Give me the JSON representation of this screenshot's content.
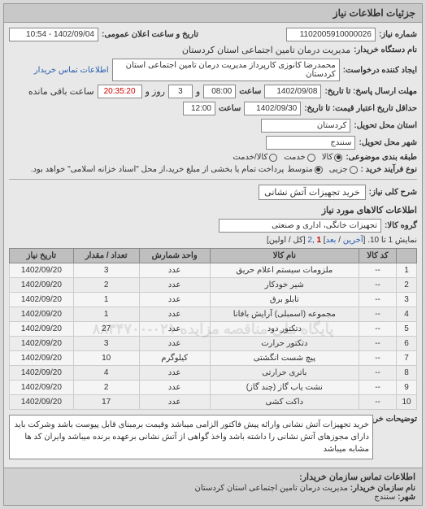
{
  "panel_title": "جزئیات اطلاعات نیاز",
  "header": {
    "req_no_label": "شماره نیاز:",
    "req_no": "1102005910000026",
    "announce_label": "تاریخ و ساعت اعلان عمومی:",
    "announce_value": "1402/09/04 - 10:54",
    "org_label": "نام دستگاه خریدار:",
    "org_value": "مدیریت درمان تامین اجتماعی استان کردستان",
    "requester_label": "ایجاد کننده درخواست:",
    "requester_value": "محمدرضا کانوزی کارپرداز مدیریت درمان تامین اجتماعی استان کردستان",
    "contact_link": "اطلاعات تماس خریدار",
    "deadline_reply_label": "مهلت ارسال پاسخ: تا تاریخ:",
    "deadline_reply_date": "1402/09/08",
    "time_label": "ساعت",
    "deadline_reply_time": "08:00",
    "remain_label": "و",
    "remain_days": "3",
    "remain_days_label": "روز و",
    "remain_time": "20:35:20",
    "remain_time_label": "ساعت باقی مانده",
    "validity_label": "حداقل تاریخ اعتبار قیمت: تا تاریخ:",
    "validity_date": "1402/09/30",
    "validity_time": "12:00",
    "province_label": "استان محل تحویل:",
    "province": "کردستان",
    "city_label": "شهر محل تحویل:",
    "city": "سنندج",
    "pkg_label": "طبقه بندی موضوعی:",
    "pkg_opts": {
      "goods": "کالا",
      "service": "خدمت",
      "both": "کالا/خدمت"
    },
    "size_label": "نوع فرآیند خرید :",
    "size_opts": {
      "small": "جزیی",
      "medium": "متوسط"
    },
    "size_note": "پرداخت تمام یا بخشی از مبلغ خرید،از محل \"اسناد خزانه اسلامی\" خواهد بود."
  },
  "need": {
    "title_label": "شرح کلی نیاز:",
    "title_value": "خرید تجهیزات آتش نشانی"
  },
  "items_section": {
    "title": "اطلاعات کالاهای مورد نیاز",
    "group_label": "گروه کالا:",
    "group_value": "تجهیزات خانگی، اداری و صنعتی",
    "pager_text_pre": "نمایش 1 تا 10. [",
    "pager_last": "آخرین",
    "pager_sep1": " / ",
    "pager_next": "بعد",
    "pager_sep2": "] ",
    "pager_page1": "1",
    "pager_comma": " ,",
    "pager_page2": "2",
    "pager_suffix": " [کل / اولین]",
    "columns": [
      "",
      "کد کالا",
      "نام کالا",
      "واحد شمارش",
      "تعداد / مقدار",
      "تاریخ نیاز"
    ],
    "rows": [
      [
        "1",
        "--",
        "ملزومات سیستم اعلام حریق",
        "عدد",
        "3",
        "1402/09/20"
      ],
      [
        "2",
        "--",
        "شیر خودکار",
        "عدد",
        "2",
        "1402/09/20"
      ],
      [
        "3",
        "--",
        "تابلو برق",
        "عدد",
        "1",
        "1402/09/20"
      ],
      [
        "4",
        "--",
        "مجموعه (اسمبلی) آرایش بافانا",
        "عدد",
        "1",
        "1402/09/20"
      ],
      [
        "5",
        "--",
        "دتکتور دود",
        "عدد",
        "27",
        "1402/09/20"
      ],
      [
        "6",
        "--",
        "دتکتور حرارت",
        "عدد",
        "3",
        "1402/09/20"
      ],
      [
        "7",
        "--",
        "پیچ شست انگشتی",
        "کیلوگرم",
        "10",
        "1402/09/20"
      ],
      [
        "8",
        "--",
        "باتری حرارتی",
        "عدد",
        "4",
        "1402/09/20"
      ],
      [
        "9",
        "--",
        "نشت یاب گاز (چند گاز)",
        "عدد",
        "2",
        "1402/09/20"
      ],
      [
        "10",
        "--",
        "داکت کشی",
        "عدد",
        "17",
        "1402/09/20"
      ]
    ],
    "watermark": "پایگاه ملی مناقصه مزایده ۰۲۱-۸۸۳۴۷۰۰"
  },
  "desc": {
    "label": "توضیحات خریدار:",
    "text": "خرید تجهیزات آتش نشانی وارائه پیش فاکتور الزامی میباشد وقیمت برمبنای قابل پیوست باشد وشرکت باید دارای مجوزهای آتش نشانی را داشته باشد واخذ گواهی از آتش نشانی برعهده برنده میباشد وایران کد ها مشابه میباشد"
  },
  "footer": {
    "title": "اطلاعات تماس سازمان خریدار:",
    "org_label": "نام سازمان خریدار:",
    "org": "مدیریت درمان تامین اجتماعی استان کردستان",
    "city_label": "شهر:",
    "city": "سنندج"
  }
}
